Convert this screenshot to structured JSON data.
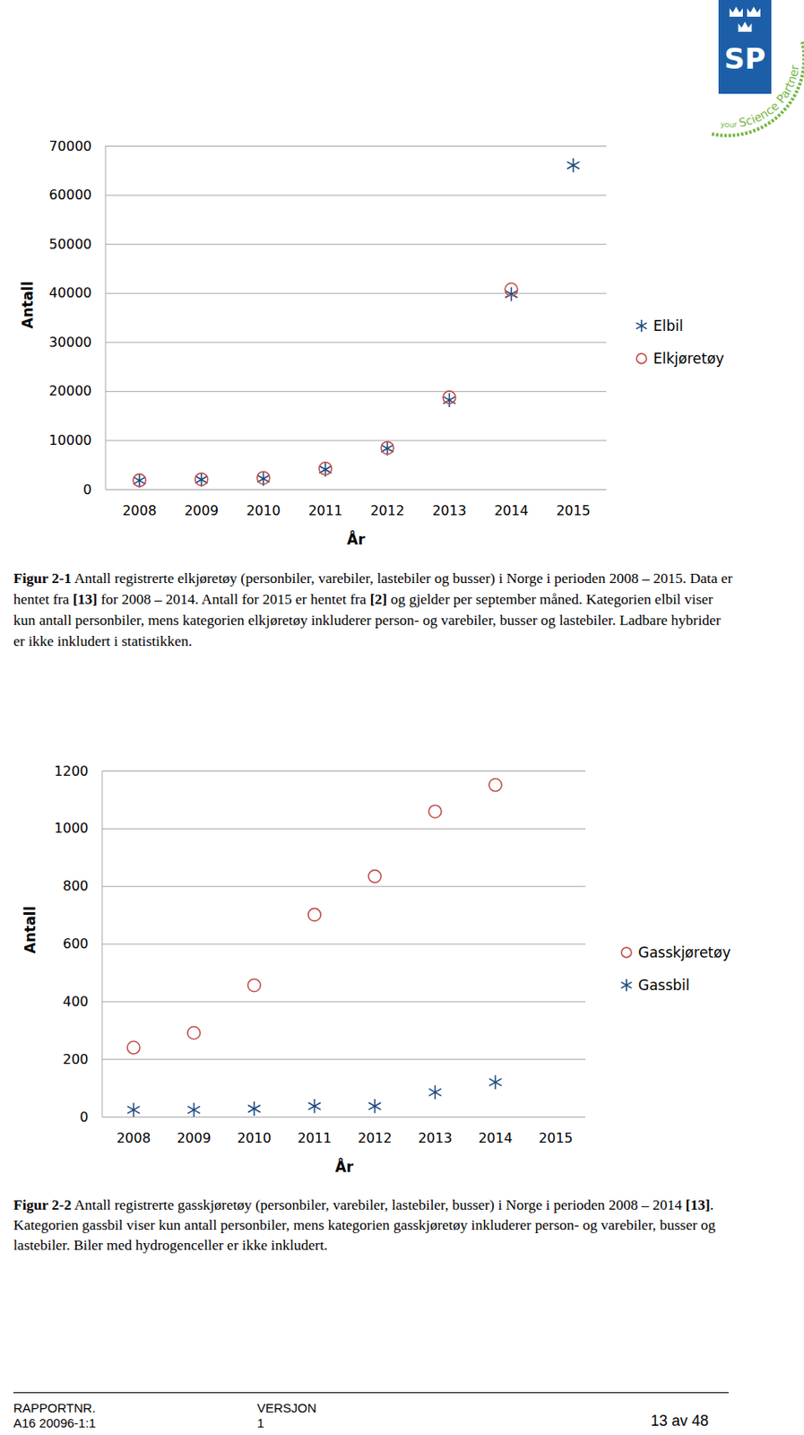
{
  "logo": {
    "text": "SP",
    "tagline": [
      "your",
      "Science Partner"
    ]
  },
  "chart_data": [
    {
      "type": "scatter",
      "x_label": "År",
      "y_label": "Antall",
      "categories": [
        "2008",
        "2009",
        "2010",
        "2011",
        "2012",
        "2013",
        "2014",
        "2015"
      ],
      "series": [
        {
          "name": "Elbil",
          "color": "#1f497d",
          "marker": "asterisk",
          "values": [
            1860,
            2050,
            2230,
            4100,
            8400,
            18250,
            39850,
            66100
          ]
        },
        {
          "name": "Elkjøretøy",
          "color": "#c0504d",
          "marker": "circle",
          "values": [
            1900,
            2100,
            2400,
            4300,
            8500,
            18800,
            40800,
            null
          ]
        }
      ],
      "ylim": [
        0,
        70000
      ],
      "yticks": [
        0,
        10000,
        20000,
        30000,
        40000,
        50000,
        60000,
        70000
      ],
      "grid": true,
      "legend": "right",
      "caption": {
        "label": "Figur 2-1",
        "text": "Antall registrerte elkjøretøy (personbiler, varebiler, lastebiler og busser) i Norge i perioden 2008 – 2015. Data er hentet fra [13] for 2008 – 2014. Antall for 2015 er hentet fra [2] og gjelder per september måned. Kategorien elbil viser kun antall personbiler, mens kategorien elkjøretøy inkluderer person- og varebiler, busser og lastebiler. Ladbare hybrider er ikke inkludert i statistikken."
      }
    },
    {
      "type": "scatter",
      "x_label": "År",
      "y_label": "Antall",
      "categories": [
        "2008",
        "2009",
        "2010",
        "2011",
        "2012",
        "2013",
        "2014",
        "2015"
      ],
      "series": [
        {
          "name": "Gasskjøretøy",
          "color": "#c0504d",
          "marker": "circle",
          "values": [
            241,
            292,
            457,
            702,
            835,
            1060,
            1152,
            null
          ]
        },
        {
          "name": "Gassbil",
          "color": "#1f497d",
          "marker": "asterisk",
          "values": [
            25,
            25,
            29,
            38,
            38,
            86,
            121,
            null
          ]
        }
      ],
      "ylim": [
        0,
        1200
      ],
      "yticks": [
        0,
        200,
        400,
        600,
        800,
        1000,
        1200
      ],
      "grid": true,
      "legend": "right",
      "caption": {
        "label": "Figur 2-2",
        "text": "Antall registrerte gasskjøretøy (personbiler, varebiler, lastebiler, busser) i Norge i perioden 2008 – 2014 [13]. Kategorien gassbil viser kun antall personbiler, mens kategorien gasskjøretøy inkluderer person- og varebiler, busser og lastebiler. Biler med hydrogenceller er ikke inkludert."
      }
    }
  ],
  "footer": {
    "report_label": "RAPPORTNR.",
    "report_number": "A16 20096-1:1",
    "version_label": "VERSJON",
    "version": "1",
    "page": "13 av 48"
  }
}
